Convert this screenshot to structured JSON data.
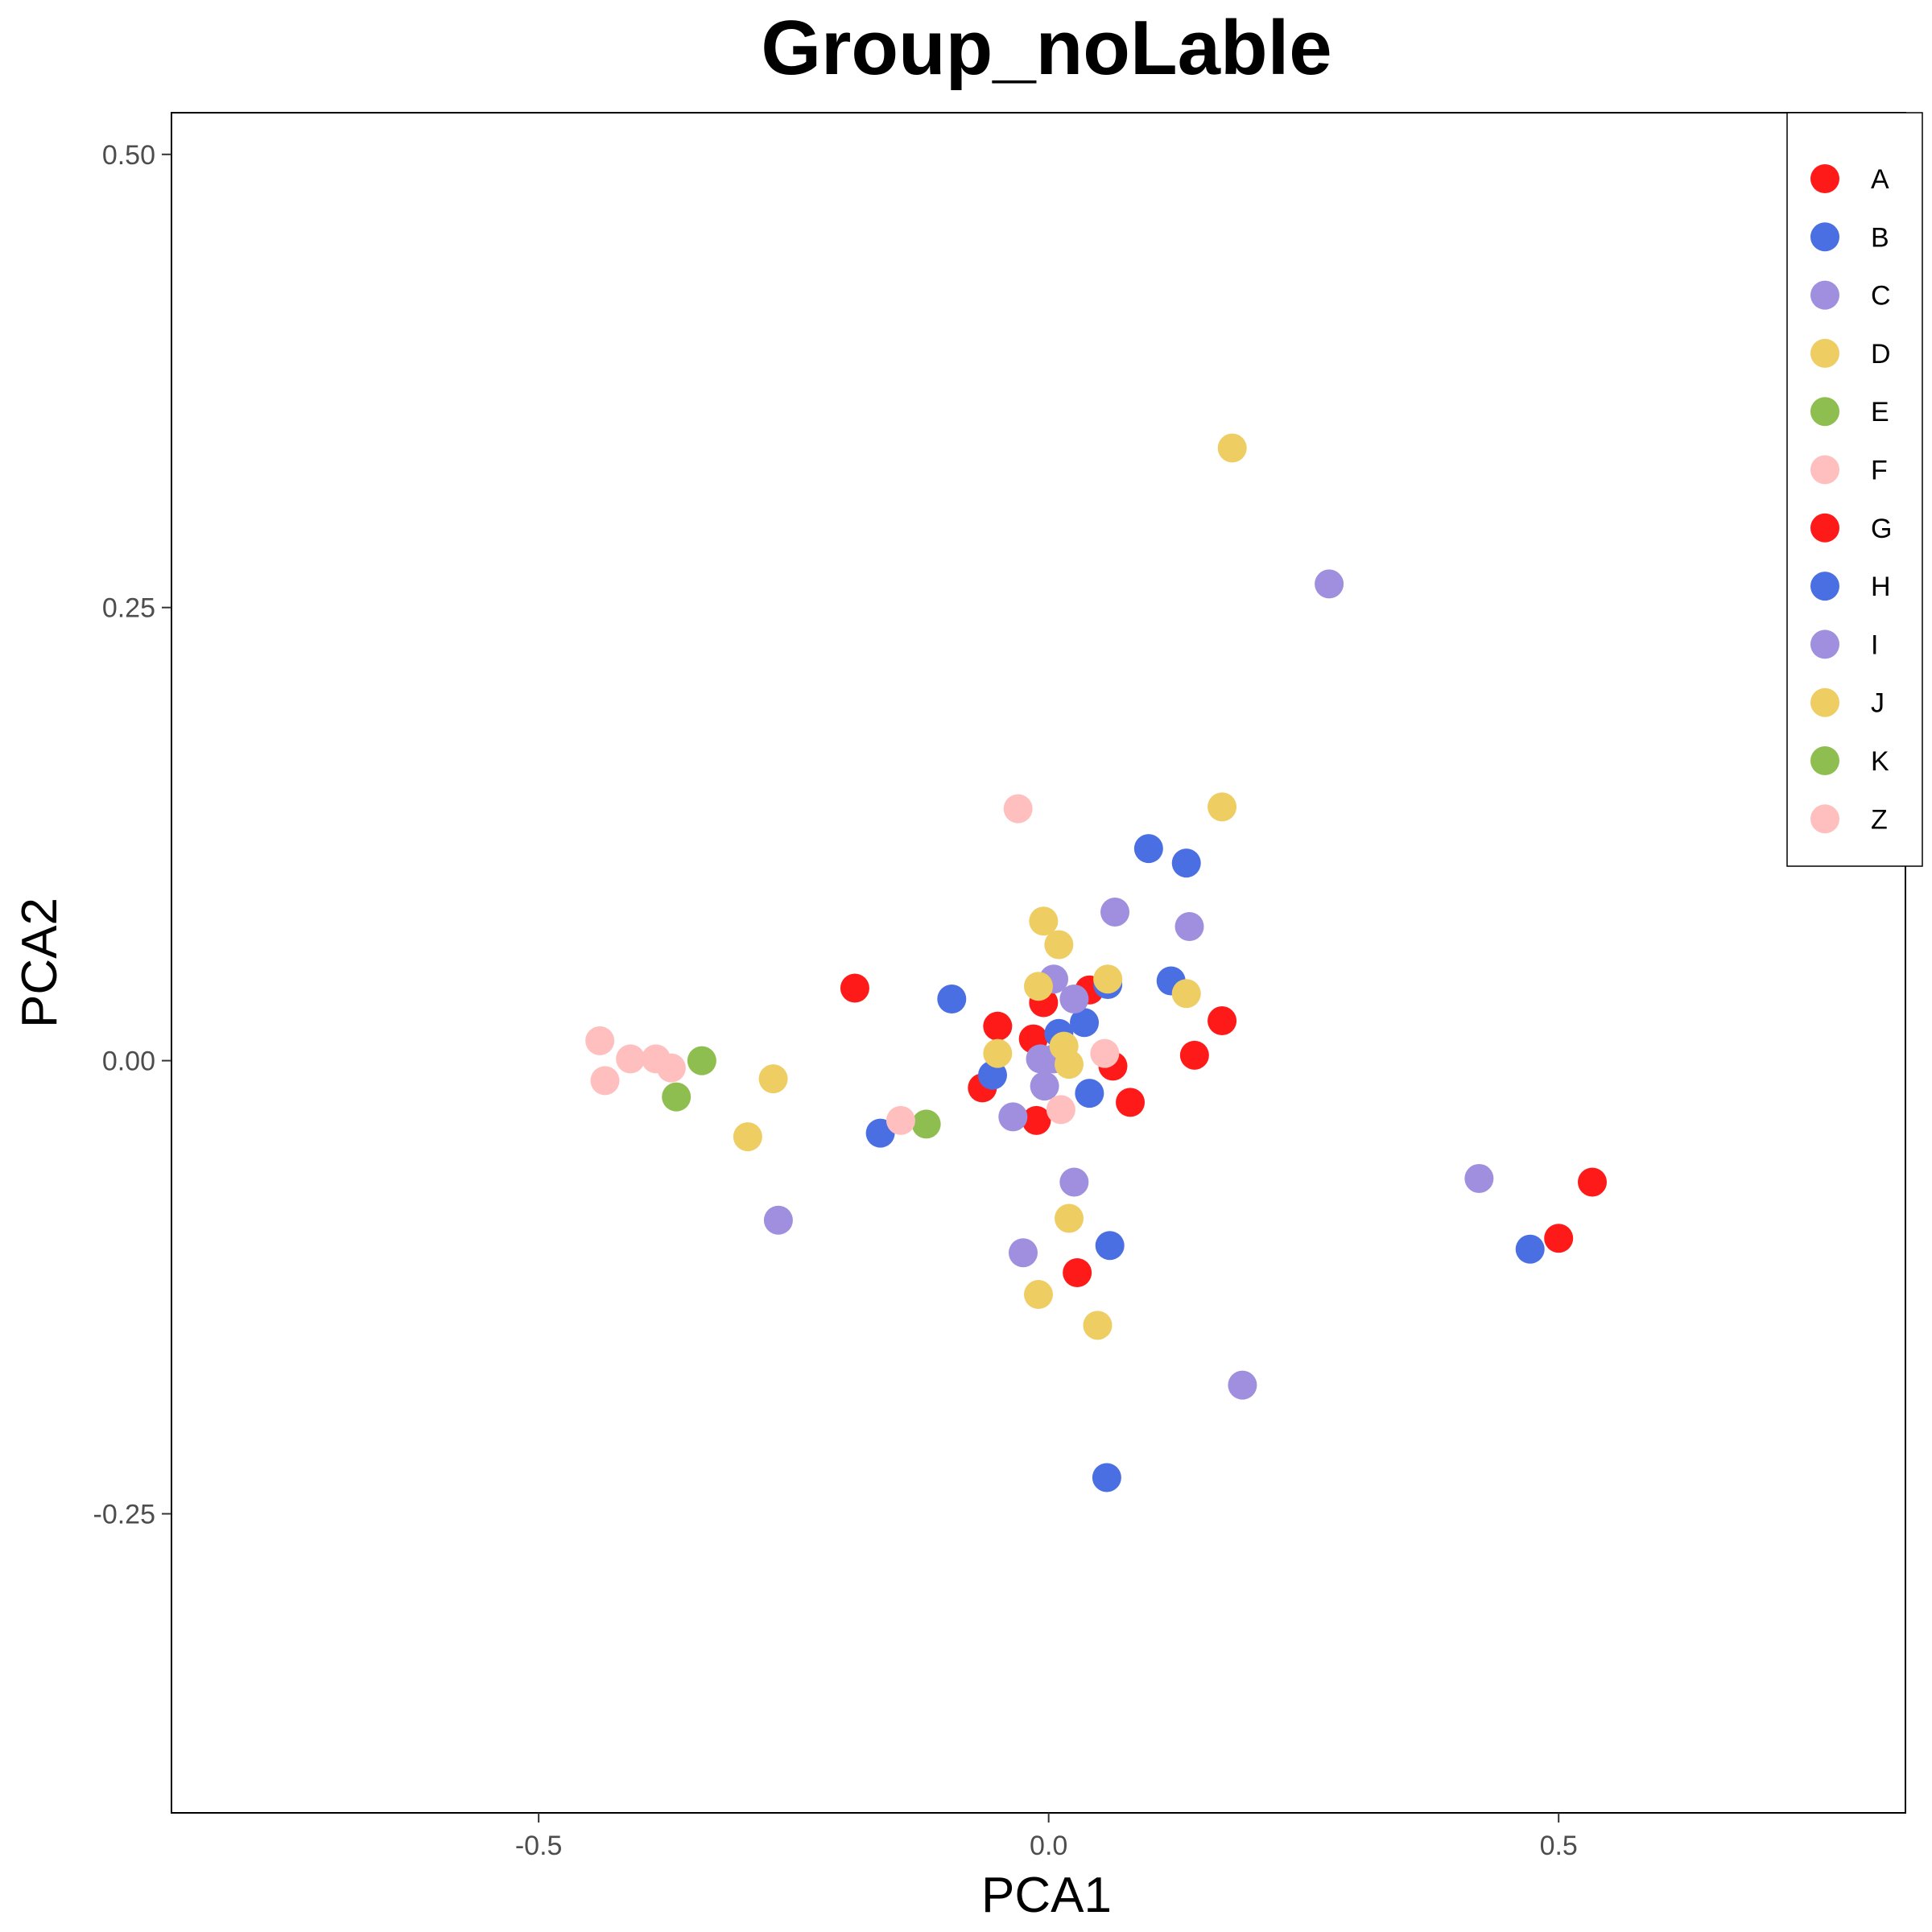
{
  "chart_data": {
    "type": "scatter",
    "title": "Group_noLable",
    "xlabel": "PCA1",
    "ylabel": "PCA2",
    "xlim": [
      -0.86,
      0.84
    ],
    "ylim": [
      -0.415,
      0.523
    ],
    "xticks": [
      -0.5,
      0.0,
      0.5
    ],
    "xtick_labels": [
      "-0.5",
      "0.0",
      "0.5"
    ],
    "yticks": [
      -0.25,
      0.0,
      0.25,
      0.5
    ],
    "ytick_labels": [
      "-0.25",
      "0.00",
      "0.25",
      "0.50"
    ],
    "grid": false,
    "legend_position": "top-right",
    "series": [
      {
        "name": "A",
        "color": "#FF1A1A",
        "points": [
          [
            -0.19,
            0.04
          ],
          [
            -0.05,
            0.019
          ],
          [
            -0.015,
            0.012
          ],
          [
            -0.005,
            0.032
          ],
          [
            0.04,
            0.039
          ],
          [
            -0.065,
            -0.015
          ],
          [
            -0.012,
            -0.033
          ],
          [
            0.063,
            -0.003
          ],
          [
            0.08,
            -0.023
          ],
          [
            0.17,
            0.022
          ],
          [
            0.143,
            0.003
          ],
          [
            0.028,
            -0.117
          ],
          [
            0.5,
            -0.098
          ],
          [
            0.533,
            -0.067
          ]
        ]
      },
      {
        "name": "B",
        "color": "#4A6FE3",
        "points": [
          [
            -0.095,
            0.034
          ],
          [
            -0.055,
            -0.008
          ],
          [
            0.01,
            0.015
          ],
          [
            0.035,
            0.021
          ],
          [
            0.058,
            0.042
          ],
          [
            0.12,
            0.044
          ],
          [
            0.098,
            0.117
          ],
          [
            0.135,
            0.109
          ],
          [
            0.04,
            -0.018
          ],
          [
            -0.165,
            -0.04
          ],
          [
            0.06,
            -0.102
          ],
          [
            0.472,
            -0.104
          ],
          [
            0.057,
            -0.23
          ]
        ]
      },
      {
        "name": "C",
        "color": "#9F8FDE",
        "points": [
          [
            0.065,
            0.082
          ],
          [
            0.138,
            0.074
          ],
          [
            0.005,
            0.045
          ],
          [
            0.025,
            0.034
          ],
          [
            -0.008,
            0.001
          ],
          [
            0.005,
            0.001
          ],
          [
            -0.004,
            -0.014
          ],
          [
            -0.035,
            -0.031
          ],
          [
            0.025,
            -0.067
          ],
          [
            -0.025,
            -0.106
          ],
          [
            -0.265,
            -0.088
          ],
          [
            0.19,
            -0.179
          ],
          [
            0.275,
            0.263
          ],
          [
            0.422,
            -0.065
          ]
        ]
      },
      {
        "name": "D",
        "color": "#EECD63",
        "points": [
          [
            0.18,
            0.338
          ],
          [
            0.17,
            0.14
          ],
          [
            -0.005,
            0.077
          ],
          [
            0.01,
            0.064
          ],
          [
            0.058,
            0.045
          ],
          [
            -0.01,
            0.041
          ],
          [
            0.135,
            0.037
          ],
          [
            0.015,
            0.008
          ],
          [
            -0.05,
            0.004
          ],
          [
            0.02,
            -0.002
          ],
          [
            -0.27,
            -0.01
          ],
          [
            -0.295,
            -0.042
          ],
          [
            0.02,
            -0.087
          ],
          [
            -0.01,
            -0.129
          ],
          [
            0.048,
            -0.146
          ]
        ]
      },
      {
        "name": "E",
        "color": "#8FBE50",
        "points": [
          [
            -0.34,
            0.0
          ],
          [
            -0.365,
            -0.02
          ],
          [
            -0.12,
            -0.035
          ]
        ]
      },
      {
        "name": "F",
        "color": "#FFBFBF",
        "points": [
          [
            -0.03,
            0.139
          ],
          [
            -0.44,
            0.011
          ],
          [
            -0.41,
            0.001
          ],
          [
            -0.385,
            0.001
          ],
          [
            -0.37,
            -0.004
          ],
          [
            -0.435,
            -0.011
          ],
          [
            -0.145,
            -0.033
          ],
          [
            0.055,
            0.004
          ],
          [
            0.012,
            -0.027
          ]
        ]
      }
    ],
    "legend": [
      {
        "label": "A",
        "color": "#FF1A1A"
      },
      {
        "label": "B",
        "color": "#4A6FE3"
      },
      {
        "label": "C",
        "color": "#9F8FDE"
      },
      {
        "label": "D",
        "color": "#EECD63"
      },
      {
        "label": "E",
        "color": "#8FBE50"
      },
      {
        "label": "F",
        "color": "#FFBFBF"
      },
      {
        "label": "G",
        "color": "#FF1A1A"
      },
      {
        "label": "H",
        "color": "#4A6FE3"
      },
      {
        "label": "I",
        "color": "#9F8FDE"
      },
      {
        "label": "J",
        "color": "#EECD63"
      },
      {
        "label": "K",
        "color": "#8FBE50"
      },
      {
        "label": "Z",
        "color": "#FFBFBF"
      }
    ]
  }
}
